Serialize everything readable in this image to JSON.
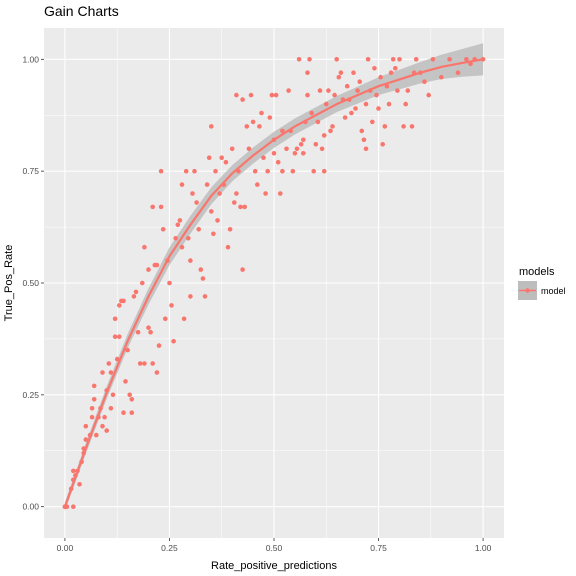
{
  "chart_data": {
    "type": "scatter",
    "title": "Gain Charts",
    "xlabel": "Rate_positive_predictions",
    "ylabel": "True_Pos_Rate",
    "xlim": [
      -0.05,
      1.05
    ],
    "ylim": [
      -0.07,
      1.07
    ],
    "xticks": [
      0.0,
      0.25,
      0.5,
      0.75,
      1.0
    ],
    "xtick_labels": [
      "0.00",
      "0.25",
      "0.50",
      "0.75",
      "1.00"
    ],
    "yticks": [
      0.0,
      0.25,
      0.5,
      0.75,
      1.0
    ],
    "ytick_labels": [
      "0.00",
      "0.25",
      "0.50",
      "0.75",
      "1.00"
    ],
    "grid": true,
    "legend": {
      "title": "models",
      "placement": "right",
      "entries": [
        "model"
      ]
    },
    "colors": {
      "points": "#f8766d",
      "smooth": "#f8766d",
      "ribbon": "#bdbdbd",
      "panel": "#ebebeb",
      "grid": "#ffffff"
    },
    "series": [
      {
        "name": "model",
        "points": [
          [
            0.0,
            0.0
          ],
          [
            0.0,
            0.0
          ],
          [
            0.005,
            0.0
          ],
          [
            0.02,
            0.0
          ],
          [
            0.015,
            0.04
          ],
          [
            0.02,
            0.06
          ],
          [
            0.02,
            0.08
          ],
          [
            0.025,
            0.07
          ],
          [
            0.03,
            0.08
          ],
          [
            0.035,
            0.05
          ],
          [
            0.04,
            0.1
          ],
          [
            0.045,
            0.12
          ],
          [
            0.045,
            0.13
          ],
          [
            0.05,
            0.15
          ],
          [
            0.05,
            0.18
          ],
          [
            0.06,
            0.16
          ],
          [
            0.065,
            0.2
          ],
          [
            0.065,
            0.22
          ],
          [
            0.07,
            0.24
          ],
          [
            0.07,
            0.27
          ],
          [
            0.075,
            0.16
          ],
          [
            0.08,
            0.2
          ],
          [
            0.085,
            0.22
          ],
          [
            0.09,
            0.18
          ],
          [
            0.09,
            0.3
          ],
          [
            0.095,
            0.2
          ],
          [
            0.1,
            0.17
          ],
          [
            0.1,
            0.26
          ],
          [
            0.105,
            0.32
          ],
          [
            0.11,
            0.3
          ],
          [
            0.11,
            0.22
          ],
          [
            0.115,
            0.25
          ],
          [
            0.12,
            0.38
          ],
          [
            0.12,
            0.42
          ],
          [
            0.125,
            0.33
          ],
          [
            0.13,
            0.38
          ],
          [
            0.13,
            0.45
          ],
          [
            0.135,
            0.46
          ],
          [
            0.14,
            0.46
          ],
          [
            0.145,
            0.28
          ],
          [
            0.14,
            0.21
          ],
          [
            0.15,
            0.35
          ],
          [
            0.155,
            0.25
          ],
          [
            0.16,
            0.24
          ],
          [
            0.16,
            0.21
          ],
          [
            0.165,
            0.47
          ],
          [
            0.17,
            0.48
          ],
          [
            0.175,
            0.39
          ],
          [
            0.18,
            0.32
          ],
          [
            0.185,
            0.5
          ],
          [
            0.19,
            0.58
          ],
          [
            0.19,
            0.32
          ],
          [
            0.2,
            0.53
          ],
          [
            0.2,
            0.4
          ],
          [
            0.205,
            0.39
          ],
          [
            0.21,
            0.32
          ],
          [
            0.21,
            0.67
          ],
          [
            0.215,
            0.54
          ],
          [
            0.22,
            0.54
          ],
          [
            0.22,
            0.3
          ],
          [
            0.225,
            0.36
          ],
          [
            0.23,
            0.75
          ],
          [
            0.23,
            0.67
          ],
          [
            0.235,
            0.62
          ],
          [
            0.24,
            0.42
          ],
          [
            0.245,
            0.55
          ],
          [
            0.25,
            0.5
          ],
          [
            0.255,
            0.45
          ],
          [
            0.26,
            0.37
          ],
          [
            0.265,
            0.6
          ],
          [
            0.27,
            0.63
          ],
          [
            0.275,
            0.64
          ],
          [
            0.28,
            0.72
          ],
          [
            0.28,
            0.58
          ],
          [
            0.285,
            0.42
          ],
          [
            0.29,
            0.75
          ],
          [
            0.295,
            0.6
          ],
          [
            0.3,
            0.55
          ],
          [
            0.3,
            0.47
          ],
          [
            0.305,
            0.7
          ],
          [
            0.31,
            0.75
          ],
          [
            0.315,
            0.68
          ],
          [
            0.32,
            0.62
          ],
          [
            0.325,
            0.53
          ],
          [
            0.33,
            0.51
          ],
          [
            0.335,
            0.47
          ],
          [
            0.34,
            0.72
          ],
          [
            0.345,
            0.78
          ],
          [
            0.35,
            0.85
          ],
          [
            0.35,
            0.66
          ],
          [
            0.355,
            0.61
          ],
          [
            0.36,
            0.75
          ],
          [
            0.365,
            0.64
          ],
          [
            0.37,
            0.7
          ],
          [
            0.375,
            0.78
          ],
          [
            0.38,
            0.72
          ],
          [
            0.385,
            0.77
          ],
          [
            0.39,
            0.58
          ],
          [
            0.395,
            0.62
          ],
          [
            0.4,
            0.8
          ],
          [
            0.405,
            0.68
          ],
          [
            0.41,
            0.7
          ],
          [
            0.41,
            0.92
          ],
          [
            0.415,
            0.75
          ],
          [
            0.42,
            0.67
          ],
          [
            0.425,
            0.91
          ],
          [
            0.425,
            0.53
          ],
          [
            0.43,
            0.67
          ],
          [
            0.435,
            0.85
          ],
          [
            0.44,
            0.8
          ],
          [
            0.445,
            0.92
          ],
          [
            0.45,
            0.86
          ],
          [
            0.455,
            0.75
          ],
          [
            0.46,
            0.72
          ],
          [
            0.465,
            0.85
          ],
          [
            0.47,
            0.88
          ],
          [
            0.475,
            0.78
          ],
          [
            0.48,
            0.7
          ],
          [
            0.485,
            0.75
          ],
          [
            0.49,
            0.87
          ],
          [
            0.495,
            0.92
          ],
          [
            0.5,
            0.79
          ],
          [
            0.5,
            0.82
          ],
          [
            0.505,
            0.92
          ],
          [
            0.51,
            0.77
          ],
          [
            0.515,
            0.7
          ],
          [
            0.52,
            0.75
          ],
          [
            0.52,
            0.84
          ],
          [
            0.53,
            0.8
          ],
          [
            0.535,
            0.93
          ],
          [
            0.54,
            0.84
          ],
          [
            0.545,
            0.75
          ],
          [
            0.55,
            0.79
          ],
          [
            0.555,
            0.8
          ],
          [
            0.56,
            1.0
          ],
          [
            0.565,
            0.81
          ],
          [
            0.57,
            0.79
          ],
          [
            0.57,
            0.82
          ],
          [
            0.575,
            0.86
          ],
          [
            0.58,
            0.92
          ],
          [
            0.58,
            0.97
          ],
          [
            0.585,
            1.0
          ],
          [
            0.59,
            0.88
          ],
          [
            0.595,
            0.75
          ],
          [
            0.6,
            0.81
          ],
          [
            0.605,
            0.86
          ],
          [
            0.61,
            0.93
          ],
          [
            0.615,
            0.8
          ],
          [
            0.62,
            0.75
          ],
          [
            0.62,
            0.83
          ],
          [
            0.625,
            0.9
          ],
          [
            0.63,
            0.93
          ],
          [
            0.635,
            0.84
          ],
          [
            0.64,
            0.85
          ],
          [
            0.645,
            0.92
          ],
          [
            0.65,
            1.0
          ],
          [
            0.655,
            0.96
          ],
          [
            0.66,
            0.97
          ],
          [
            0.665,
            0.91
          ],
          [
            0.67,
            0.87
          ],
          [
            0.675,
            0.94
          ],
          [
            0.68,
            0.91
          ],
          [
            0.685,
            0.88
          ],
          [
            0.69,
            0.97
          ],
          [
            0.695,
            0.89
          ],
          [
            0.7,
            0.93
          ],
          [
            0.705,
            0.95
          ],
          [
            0.71,
            0.84
          ],
          [
            0.715,
            0.82
          ],
          [
            0.72,
            0.9
          ],
          [
            0.72,
            0.8
          ],
          [
            0.725,
            1.0
          ],
          [
            0.73,
            0.93
          ],
          [
            0.735,
            0.86
          ],
          [
            0.74,
            0.98
          ],
          [
            0.745,
            0.92
          ],
          [
            0.75,
            0.89
          ],
          [
            0.755,
            0.96
          ],
          [
            0.76,
            0.81
          ],
          [
            0.765,
            0.85
          ],
          [
            0.77,
            0.94
          ],
          [
            0.775,
            0.9
          ],
          [
            0.78,
            0.97
          ],
          [
            0.785,
            1.0
          ],
          [
            0.79,
            0.98
          ],
          [
            0.795,
            0.93
          ],
          [
            0.8,
            1.0
          ],
          [
            0.81,
            0.85
          ],
          [
            0.815,
            0.9
          ],
          [
            0.82,
            0.93
          ],
          [
            0.83,
            0.85
          ],
          [
            0.835,
            0.97
          ],
          [
            0.84,
            1.0
          ],
          [
            0.85,
            0.97
          ],
          [
            0.86,
            0.95
          ],
          [
            0.87,
            0.92
          ],
          [
            0.88,
            1.0
          ],
          [
            0.9,
            0.96
          ],
          [
            0.92,
            1.0
          ],
          [
            0.94,
            0.97
          ],
          [
            0.96,
            1.0
          ],
          [
            0.97,
            0.99
          ],
          [
            0.98,
            1.0
          ],
          [
            1.0,
            1.0
          ]
        ],
        "smooth": [
          [
            0.0,
            0.0
          ],
          [
            0.05,
            0.13
          ],
          [
            0.1,
            0.255
          ],
          [
            0.15,
            0.37
          ],
          [
            0.2,
            0.47
          ],
          [
            0.25,
            0.56
          ],
          [
            0.3,
            0.63
          ],
          [
            0.35,
            0.695
          ],
          [
            0.4,
            0.745
          ],
          [
            0.45,
            0.785
          ],
          [
            0.5,
            0.82
          ],
          [
            0.55,
            0.85
          ],
          [
            0.6,
            0.875
          ],
          [
            0.65,
            0.9
          ],
          [
            0.7,
            0.92
          ],
          [
            0.75,
            0.94
          ],
          [
            0.8,
            0.955
          ],
          [
            0.85,
            0.97
          ],
          [
            0.9,
            0.983
          ],
          [
            0.95,
            0.992
          ],
          [
            1.0,
            1.0
          ]
        ],
        "ribbon_halfwidth": [
          0.01,
          0.012,
          0.014,
          0.016,
          0.018,
          0.02,
          0.02,
          0.019,
          0.018,
          0.018,
          0.018,
          0.018,
          0.018,
          0.018,
          0.019,
          0.02,
          0.022,
          0.024,
          0.027,
          0.031,
          0.036
        ]
      }
    ]
  }
}
